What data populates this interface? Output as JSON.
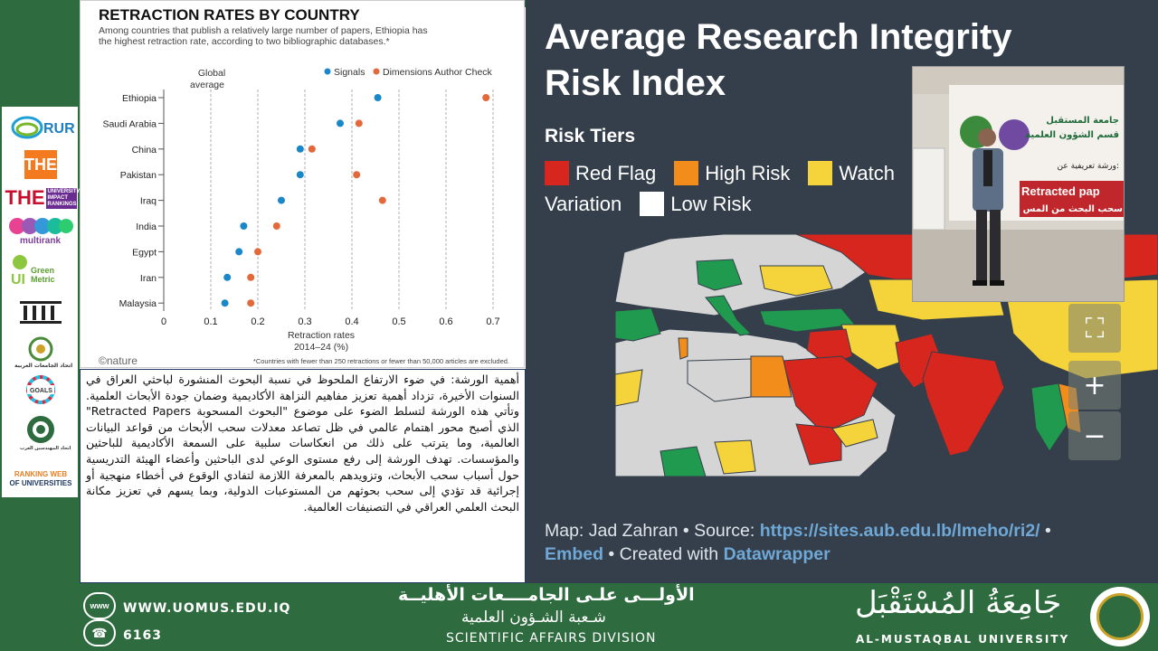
{
  "chart": {
    "title": "RETRACTION RATES BY COUNTRY",
    "subtitle_line1": "Among countries that publish a relatively large number of papers, Ethiopia has",
    "subtitle_line2": "the highest retraction rate, according to two bibliographic databases.*",
    "global_avg_line1": "Global",
    "global_avg_line2": "average",
    "source_logo": "©nature",
    "footnote": "*Countries with fewer than 250 retractions or fewer than 50,000 articles are excluded."
  },
  "chart_data": {
    "type": "scatter",
    "title": "RETRACTION RATES BY COUNTRY",
    "xlabel_line1": "Retraction rates",
    "xlabel_line2": "2014–24 (%)",
    "xlim": [
      0,
      0.7
    ],
    "x_ticks": [
      "0",
      "0.1",
      "0.2",
      "0.3",
      "0.4",
      "0.5",
      "0.6",
      "0.7"
    ],
    "x_tick_values": [
      0,
      0.1,
      0.2,
      0.3,
      0.4,
      0.5,
      0.6,
      0.7
    ],
    "global_average": 0.1,
    "categories": [
      "Ethiopia",
      "Saudi Arabia",
      "China",
      "Pakistan",
      "Iraq",
      "India",
      "Egypt",
      "Iran",
      "Malaysia"
    ],
    "series": [
      {
        "name": "Signals",
        "color": "#1a87c9",
        "values": [
          0.455,
          0.375,
          0.29,
          0.29,
          0.25,
          0.17,
          0.16,
          0.135,
          0.13
        ]
      },
      {
        "name": "Dimensions Author Check",
        "color": "#e3683a",
        "values": [
          0.685,
          0.415,
          0.315,
          0.41,
          0.465,
          0.24,
          0.2,
          0.185,
          0.185
        ]
      }
    ],
    "legend_position": "top-right",
    "grid": "vertical dashed"
  },
  "description_text": "أهمية الورشة: في ضوء الارتفاع الملحوظ في نسبة البحوث المنشورة لباحثي العراق في السنوات الأخيرة، تزداد أهمية تعزيز مفاهيم النزاهة الأكاديمية وضمان جودة الأبحاث العلمية. وتأتي هذه الورشة لتسلط الضوء على موضوع \"البحوث المسحوبة Retracted Papers\" الذي أصبح محور اهتمام عالمي في ظل تصاعد معدلات سحب الأبحاث من قواعد البيانات العالمية، وما يترتب على ذلك من انعكاسات سلبية على السمعة الأكاديمية للباحثين والمؤسسات. تهدف الورشة إلى رفع مستوى الوعي لدى الباحثين وأعضاء الهيئة التدريسية حول أسباب سحب الأبحاث، وتزويدهم بالمعرفة اللازمة لتفادي الوقوع في أخطاء منهجية أو إجرائية قد تؤدي إلى سحب بحوثهم من المستوعبات الدولية، وبما يسهم في تعزيز مكانة البحث العلمي العراقي في التصنيفات العالمية.",
  "panel": {
    "title_line1": "Average Research Integrity",
    "title_line2": "Risk Index",
    "tiers_label": "Risk Tiers",
    "tiers": [
      {
        "label": "Red Flag",
        "color": "#d7261e"
      },
      {
        "label": "High Risk",
        "color": "#f28c1b"
      },
      {
        "label": "Watch",
        "color": "#f5d33b"
      }
    ],
    "tiers_row2_prefix": "Variation",
    "tiers_row2": [
      {
        "label": "Low Risk",
        "color": "#ffffff"
      }
    ],
    "footer_map_credit": "Map: Jad Zahran • Source: ",
    "footer_source_link": "https://sites.aub.edu.lb/lmeho/ri2/",
    "footer_bullet": " •",
    "footer_embed": "Embed",
    "footer_created": " • Created with ",
    "footer_datawrapper": "Datawrapper",
    "map_colors": {
      "red": "#d7261e",
      "orange": "#f28c1b",
      "yellow": "#f5d33b",
      "green": "#1f9a4e",
      "grey": "#d5d5d5",
      "sea": "#343f4b"
    },
    "zoom_controls": [
      "fullscreen-icon",
      "plus-icon",
      "minus-icon"
    ]
  },
  "photo": {
    "banner_ar_line1": "جامعة المستقبل",
    "banner_ar_line2": "قسم الشؤون العلمية",
    "banner_ar_line3": "ورشة تعريفية عن:",
    "banner_en": "Retracted pap",
    "banner_ar_line4": "سحب البحث من المس"
  },
  "logos": [
    "RUR",
    "THE",
    "THE UNIVERSITY IMPACT RANKINGS",
    "multirank",
    "UI Green Metric",
    "QS",
    "اتحاد الجامعات العربية",
    "SDG",
    "اتحاد المهندسين العرب",
    "RANKING WEB OF UNIVERSITIES"
  ],
  "footer": {
    "website": "WWW.UOMUS.EDU.IQ",
    "phone": "6163",
    "ar_title": "الأولـــى علـى الجامــــعات الأهليــة",
    "ar_division": "شـعبة الشـؤون العلمية",
    "en_division": "SCIENTIFIC AFFAIRS DIVISION",
    "uni_ar": "جَامِعَةُ المُسْتَقْبَل",
    "uni_en": "AL-MUSTAQBAL UNIVERSITY"
  }
}
